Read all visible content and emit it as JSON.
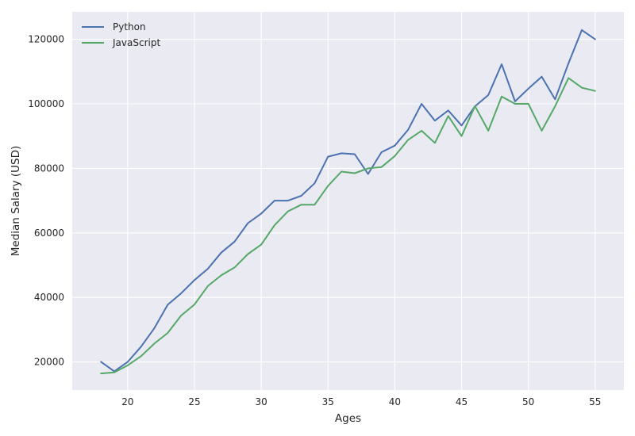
{
  "chart_data": {
    "type": "line",
    "title": "",
    "xlabel": "Ages",
    "ylabel": "Median Salary (USD)",
    "x": [
      18,
      19,
      20,
      21,
      22,
      23,
      24,
      25,
      26,
      27,
      28,
      29,
      30,
      31,
      32,
      33,
      34,
      35,
      36,
      37,
      38,
      39,
      40,
      41,
      42,
      43,
      44,
      45,
      46,
      47,
      48,
      49,
      50,
      51,
      52,
      53,
      54,
      55
    ],
    "series": [
      {
        "name": "Python",
        "color": "#4c72b0",
        "values": [
          20046,
          17100,
          20000,
          24744,
          30500,
          37732,
          41247,
          45372,
          48876,
          53850,
          57287,
          63016,
          65998,
          70003,
          70000,
          71496,
          75370,
          83640,
          84666,
          84392,
          78254,
          85000,
          87038,
          91991,
          100000,
          94796,
          97962,
          93302,
          99240,
          102736,
          112285,
          100771,
          104708,
          108423,
          101407,
          112542,
          122870,
          120000
        ]
      },
      {
        "name": "JavaScript",
        "color": "#55a868",
        "values": [
          16446,
          16791,
          18942,
          21780,
          25704,
          29000,
          34372,
          37810,
          43515,
          46823,
          49293,
          53437,
          56373,
          62375,
          66674,
          68745,
          68746,
          74583,
          79000,
          78508,
          79996,
          80403,
          83820,
          88833,
          91660,
          87892,
          96243,
          90000,
          99313,
          91660,
          102264,
          100000,
          100000,
          91660,
          99240,
          108000,
          105000,
          104000
        ]
      }
    ],
    "xlim": [
      15.85,
      57.15
    ],
    "ylim": [
      11300,
      128500
    ],
    "xticks": [
      20,
      25,
      30,
      35,
      40,
      45,
      50,
      55
    ],
    "yticks": [
      20000,
      40000,
      60000,
      80000,
      100000,
      120000
    ],
    "grid": true,
    "legend_position": "top-left",
    "background": "#eaeaf2",
    "grid_color": "#ffffff"
  }
}
